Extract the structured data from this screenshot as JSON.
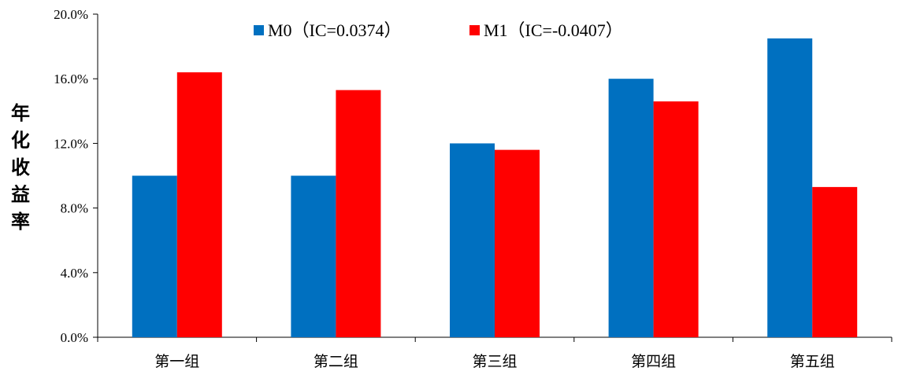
{
  "chart_data": {
    "type": "bar",
    "title": "",
    "xlabel": "",
    "ylabel": "年化收益率",
    "categories": [
      "第一组",
      "第二组",
      "第三组",
      "第四组",
      "第五组"
    ],
    "series": [
      {
        "name": "M0（IC=0.0374）",
        "color": "#0070C0",
        "values": [
          10.0,
          10.0,
          12.0,
          16.0,
          18.5
        ]
      },
      {
        "name": "M1（IC=-0.0407）",
        "color": "#FF0000",
        "values": [
          16.4,
          15.3,
          11.6,
          14.6,
          9.3
        ]
      }
    ],
    "ylim": [
      0,
      20
    ],
    "yticks": [
      "0.0%",
      "4.0%",
      "8.0%",
      "12.0%",
      "16.0%",
      "20.0%"
    ],
    "y_tick_values": [
      0,
      4,
      8,
      12,
      16,
      20
    ],
    "value_format": "percent",
    "grid": false,
    "legend_position": "top"
  }
}
